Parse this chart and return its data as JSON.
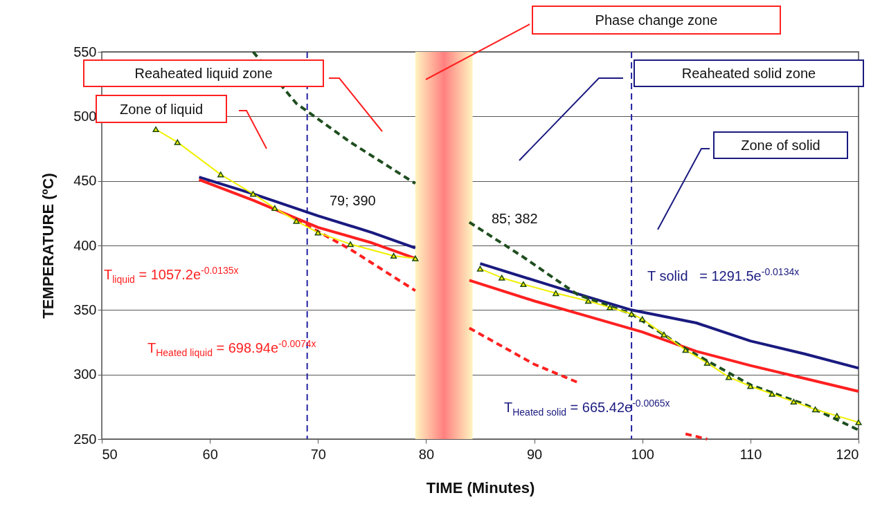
{
  "chart_data": {
    "type": "line",
    "xlabel": "TIME (Minutes)",
    "ylabel": "TEMPERATURE (ºC)",
    "xlim": [
      50,
      120
    ],
    "xticks": [
      50,
      60,
      70,
      80,
      90,
      100,
      110,
      120
    ],
    "ylim": [
      250,
      550
    ],
    "yticks": [
      250,
      300,
      350,
      400,
      450,
      500,
      550
    ],
    "grid": "y",
    "series": [
      {
        "color": "#1a1a80",
        "line_style": "solid",
        "x": [
          59,
          64,
          70,
          75,
          79,
          82,
          85,
          90,
          95,
          99,
          105,
          110,
          115,
          120
        ],
        "values": [
          453,
          440,
          423,
          410,
          398,
          null,
          386,
          373,
          360,
          350,
          340,
          326,
          316,
          305
        ]
      },
      {
        "color": "#ff2020",
        "line_style": "solid",
        "x": [
          59,
          64,
          70,
          75,
          79,
          82,
          84,
          90,
          95,
          100,
          105,
          110,
          115,
          120
        ],
        "values": [
          451,
          435,
          414,
          402,
          390,
          null,
          373,
          357,
          345,
          333,
          318,
          307,
          297,
          287
        ]
      },
      {
        "color": "#ff2020",
        "line_style": "dashed",
        "x": [
          68,
          73,
          79,
          82,
          84,
          90,
          94,
          100,
          104,
          106
        ],
        "values": [
          420,
          397,
          365,
          null,
          336,
          308,
          294,
          null,
          254,
          250
        ]
      },
      {
        "color": "#1f4e1f",
        "line_style": "dashed",
        "x": [
          64,
          68,
          73,
          79,
          82,
          84,
          89,
          94,
          99,
          104,
          110,
          115,
          120
        ],
        "values": [
          550,
          510,
          480,
          448,
          null,
          418,
          391,
          362,
          347,
          320,
          292,
          277,
          257
        ]
      },
      {
        "color": "#f0f000",
        "marker": "triangle",
        "x": [
          55,
          57,
          61,
          64,
          66,
          68,
          70,
          73,
          77,
          79,
          82,
          85,
          87,
          89,
          92,
          95,
          97,
          99,
          100,
          102,
          104,
          106,
          108,
          110,
          112,
          114,
          116,
          118,
          120
        ],
        "values": [
          490,
          480,
          455,
          440,
          429,
          419,
          410,
          401,
          392,
          390,
          null,
          382,
          375,
          370,
          363,
          357,
          352,
          347,
          343,
          331,
          319,
          309,
          298,
          291,
          285,
          279,
          273,
          268,
          263
        ]
      }
    ],
    "bands": [
      {
        "axis": "x",
        "from": 79,
        "to": 84.3,
        "color": "#ff8080"
      }
    ],
    "ref_lines": [
      {
        "axis": "x",
        "value": 69,
        "color": "#2020a0",
        "line_style": "dashed"
      },
      {
        "axis": "x",
        "value": 99,
        "color": "#2020a0",
        "line_style": "dashed"
      }
    ],
    "annotations": [
      "Phase change zone",
      "Reaheated liquid zone",
      "Zone of liquid",
      "Reaheated solid zone",
      "Zone of solid",
      "T$_{liquid}$ = 1057.2e$^{-0.0135x}$",
      "T$_{Heated liquid}$ = 698.94e$^{-0.0074x}$",
      "T solid   = 1291.5e$^{-0.0134x}$",
      "T$_{Heated solid}$ = 665.42e$^{-0.0065x}$",
      "79; 390",
      "85; 382"
    ]
  }
}
